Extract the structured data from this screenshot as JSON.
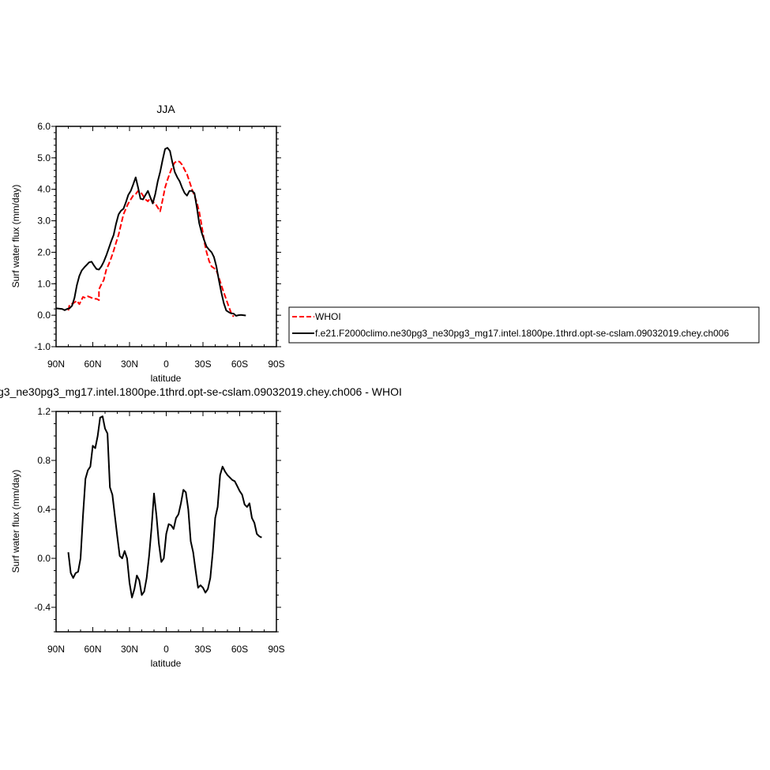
{
  "chart_data": [
    {
      "type": "line",
      "title": "JJA",
      "xlabel": "latitude",
      "ylabel": "Surf water flux (mm/day)",
      "xlim": [
        -90,
        90
      ],
      "ylim": [
        -1.0,
        6.0
      ],
      "x_direction": "90N on left, 90S on right (x = latitude in degrees north)",
      "xticks": [
        {
          "value": -90,
          "label": "90N"
        },
        {
          "value": -60,
          "label": "60N"
        },
        {
          "value": -30,
          "label": "30N"
        },
        {
          "value": 0,
          "label": "0"
        },
        {
          "value": 30,
          "label": "30S"
        },
        {
          "value": 60,
          "label": "60S"
        },
        {
          "value": 90,
          "label": "90S"
        }
      ],
      "yticks": [
        {
          "value": -1.0,
          "label": "-1.0"
        },
        {
          "value": 0.0,
          "label": "0.0"
        },
        {
          "value": 1.0,
          "label": "1.0"
        },
        {
          "value": 2.0,
          "label": "2.0"
        },
        {
          "value": 3.0,
          "label": "3.0"
        },
        {
          "value": 4.0,
          "label": "4.0"
        },
        {
          "value": 5.0,
          "label": "5.0"
        },
        {
          "value": 6.0,
          "label": "6.0"
        }
      ],
      "legend_position": "right of the top plot",
      "series": [
        {
          "name": "WHOI",
          "color": "#ff0000",
          "dash": "dashed",
          "points": [
            [
              -80,
              0.15
            ],
            [
              -79,
              0.33
            ],
            [
              -76,
              0.38
            ],
            [
              -73,
              0.46
            ],
            [
              -71,
              0.35
            ],
            [
              -68,
              0.58
            ],
            [
              -66,
              0.55
            ],
            [
              -64,
              0.6
            ],
            [
              -62,
              0.57
            ],
            [
              -59,
              0.52
            ],
            [
              -57,
              0.52
            ],
            [
              -55,
              0.48
            ],
            [
              -55,
              0.82
            ],
            [
              -53,
              0.98
            ],
            [
              -51,
              1.12
            ],
            [
              -49,
              1.45
            ],
            [
              -47,
              1.62
            ],
            [
              -45,
              1.82
            ],
            [
              -43,
              2.05
            ],
            [
              -41,
              2.3
            ],
            [
              -39,
              2.55
            ],
            [
              -37,
              2.88
            ],
            [
              -35,
              3.2
            ],
            [
              -33,
              3.38
            ],
            [
              -31,
              3.55
            ],
            [
              -29,
              3.68
            ],
            [
              -27,
              3.8
            ],
            [
              -25,
              3.85
            ],
            [
              -23,
              3.95
            ],
            [
              -21,
              3.92
            ],
            [
              -19,
              3.8
            ],
            [
              -17,
              3.68
            ],
            [
              -15,
              3.62
            ],
            [
              -13,
              3.72
            ],
            [
              -11,
              3.6
            ],
            [
              -9,
              3.55
            ],
            [
              -7,
              3.42
            ],
            [
              -5,
              3.3
            ],
            [
              -3,
              3.65
            ],
            [
              -1,
              4.05
            ],
            [
              1,
              4.3
            ],
            [
              3,
              4.52
            ],
            [
              5,
              4.72
            ],
            [
              7,
              4.85
            ],
            [
              9,
              4.9
            ],
            [
              11,
              4.87
            ],
            [
              13,
              4.78
            ],
            [
              15,
              4.62
            ],
            [
              17,
              4.48
            ],
            [
              19,
              4.25
            ],
            [
              21,
              4.0
            ],
            [
              23,
              3.8
            ],
            [
              25,
              3.58
            ],
            [
              27,
              3.28
            ],
            [
              29,
              2.85
            ],
            [
              31,
              2.35
            ],
            [
              33,
              2.0
            ],
            [
              35,
              1.72
            ],
            [
              37,
              1.55
            ],
            [
              39,
              1.5
            ],
            [
              41,
              1.42
            ],
            [
              43,
              1.2
            ],
            [
              45,
              0.95
            ],
            [
              47,
              0.72
            ],
            [
              49,
              0.5
            ],
            [
              51,
              0.28
            ],
            [
              53,
              0.08
            ],
            [
              55,
              -0.05
            ]
          ]
        },
        {
          "name": "f.e21.F2000climo.ne30pg3_ne30pg3_mg17.intel.1800pe.1thrd.opt-se-cslam.09032019.chey.ch006",
          "color": "#000000",
          "dash": "solid",
          "points": [
            [
              -90,
              0.22
            ],
            [
              -85,
              0.2
            ],
            [
              -83,
              0.16
            ],
            [
              -81,
              0.2
            ],
            [
              -79,
              0.22
            ],
            [
              -77,
              0.3
            ],
            [
              -75,
              0.55
            ],
            [
              -73,
              0.95
            ],
            [
              -71,
              1.25
            ],
            [
              -69,
              1.42
            ],
            [
              -67,
              1.52
            ],
            [
              -65,
              1.6
            ],
            [
              -63,
              1.68
            ],
            [
              -61,
              1.7
            ],
            [
              -59,
              1.58
            ],
            [
              -57,
              1.47
            ],
            [
              -55,
              1.45
            ],
            [
              -53,
              1.55
            ],
            [
              -51,
              1.7
            ],
            [
              -49,
              1.9
            ],
            [
              -47,
              2.12
            ],
            [
              -45,
              2.35
            ],
            [
              -43,
              2.55
            ],
            [
              -41,
              2.9
            ],
            [
              -39,
              3.2
            ],
            [
              -37,
              3.32
            ],
            [
              -35,
              3.38
            ],
            [
              -33,
              3.58
            ],
            [
              -31,
              3.82
            ],
            [
              -29,
              3.95
            ],
            [
              -27,
              4.15
            ],
            [
              -25,
              4.38
            ],
            [
              -23,
              4.05
            ],
            [
              -21,
              3.7
            ],
            [
              -19,
              3.68
            ],
            [
              -17,
              3.82
            ],
            [
              -15,
              3.95
            ],
            [
              -13,
              3.75
            ],
            [
              -11,
              3.55
            ],
            [
              -9,
              3.85
            ],
            [
              -7,
              4.25
            ],
            [
              -5,
              4.55
            ],
            [
              -3,
              4.92
            ],
            [
              -1,
              5.28
            ],
            [
              1,
              5.32
            ],
            [
              3,
              5.22
            ],
            [
              5,
              4.85
            ],
            [
              7,
              4.55
            ],
            [
              9,
              4.38
            ],
            [
              11,
              4.25
            ],
            [
              13,
              4.05
            ],
            [
              15,
              3.88
            ],
            [
              17,
              3.8
            ],
            [
              19,
              3.95
            ],
            [
              21,
              3.95
            ],
            [
              23,
              3.88
            ],
            [
              25,
              3.42
            ],
            [
              27,
              2.92
            ],
            [
              29,
              2.62
            ],
            [
              31,
              2.38
            ],
            [
              33,
              2.18
            ],
            [
              35,
              2.08
            ],
            [
              37,
              2.0
            ],
            [
              39,
              1.85
            ],
            [
              41,
              1.55
            ],
            [
              43,
              1.12
            ],
            [
              45,
              0.72
            ],
            [
              47,
              0.38
            ],
            [
              49,
              0.15
            ],
            [
              51,
              0.1
            ],
            [
              53,
              0.06
            ],
            [
              55,
              0.05
            ],
            [
              57,
              -0.02
            ],
            [
              59,
              0.0
            ],
            [
              61,
              0.01
            ],
            [
              63,
              0.0
            ],
            [
              65,
              -0.01
            ]
          ]
        }
      ]
    },
    {
      "type": "line",
      "title": "g3_ne30pg3_mg17.intel.1800pe.1thrd.opt-se-cslam.09032019.chey.ch006 - WHOI",
      "xlabel": "latitude",
      "ylabel": "Surf water flux (mm/day)",
      "xlim": [
        -90,
        90
      ],
      "ylim": [
        -0.6,
        1.2
      ],
      "x_direction": "90N on left, 90S on right (x = latitude in degrees north)",
      "xticks": [
        {
          "value": -90,
          "label": "90N"
        },
        {
          "value": -60,
          "label": "60N"
        },
        {
          "value": -30,
          "label": "30N"
        },
        {
          "value": 0,
          "label": "0"
        },
        {
          "value": 30,
          "label": "30S"
        },
        {
          "value": 60,
          "label": "60S"
        },
        {
          "value": 90,
          "label": "90S"
        }
      ],
      "yticks": [
        {
          "value": -0.4,
          "label": "-0.4"
        },
        {
          "value": 0.0,
          "label": "0.0"
        },
        {
          "value": 0.4,
          "label": "0.4"
        },
        {
          "value": 0.8,
          "label": "0.8"
        },
        {
          "value": 1.2,
          "label": "1.2"
        }
      ],
      "series": [
        {
          "color": "#000000",
          "dash": "solid",
          "points": [
            [
              -80,
              0.05
            ],
            [
              -78,
              -0.12
            ],
            [
              -76,
              -0.16
            ],
            [
              -74,
              -0.12
            ],
            [
              -72,
              -0.11
            ],
            [
              -70,
              0.0
            ],
            [
              -68,
              0.35
            ],
            [
              -66,
              0.65
            ],
            [
              -64,
              0.72
            ],
            [
              -62,
              0.75
            ],
            [
              -60,
              0.92
            ],
            [
              -58,
              0.9
            ],
            [
              -56,
              1.0
            ],
            [
              -54,
              1.15
            ],
            [
              -52,
              1.16
            ],
            [
              -50,
              1.06
            ],
            [
              -48,
              1.02
            ],
            [
              -46,
              0.58
            ],
            [
              -44,
              0.52
            ],
            [
              -42,
              0.35
            ],
            [
              -40,
              0.18
            ],
            [
              -38,
              0.02
            ],
            [
              -36,
              0.0
            ],
            [
              -34,
              0.06
            ],
            [
              -32,
              0.0
            ],
            [
              -30,
              -0.2
            ],
            [
              -28,
              -0.32
            ],
            [
              -26,
              -0.25
            ],
            [
              -24,
              -0.14
            ],
            [
              -22,
              -0.18
            ],
            [
              -20,
              -0.3
            ],
            [
              -18,
              -0.27
            ],
            [
              -16,
              -0.16
            ],
            [
              -14,
              0.02
            ],
            [
              -12,
              0.25
            ],
            [
              -10,
              0.53
            ],
            [
              -8,
              0.35
            ],
            [
              -6,
              0.12
            ],
            [
              -4,
              -0.03
            ],
            [
              -2,
              0.0
            ],
            [
              0,
              0.2
            ],
            [
              2,
              0.28
            ],
            [
              4,
              0.27
            ],
            [
              6,
              0.24
            ],
            [
              8,
              0.33
            ],
            [
              10,
              0.36
            ],
            [
              12,
              0.45
            ],
            [
              14,
              0.56
            ],
            [
              16,
              0.54
            ],
            [
              18,
              0.4
            ],
            [
              20,
              0.14
            ],
            [
              22,
              0.05
            ],
            [
              24,
              -0.1
            ],
            [
              26,
              -0.24
            ],
            [
              28,
              -0.22
            ],
            [
              30,
              -0.24
            ],
            [
              32,
              -0.28
            ],
            [
              34,
              -0.25
            ],
            [
              36,
              -0.16
            ],
            [
              38,
              0.05
            ],
            [
              40,
              0.33
            ],
            [
              42,
              0.42
            ],
            [
              44,
              0.68
            ],
            [
              46,
              0.75
            ],
            [
              48,
              0.71
            ],
            [
              50,
              0.68
            ],
            [
              52,
              0.66
            ],
            [
              54,
              0.64
            ],
            [
              56,
              0.63
            ],
            [
              58,
              0.59
            ],
            [
              60,
              0.55
            ],
            [
              62,
              0.52
            ],
            [
              64,
              0.44
            ],
            [
              66,
              0.42
            ],
            [
              68,
              0.45
            ],
            [
              70,
              0.33
            ],
            [
              72,
              0.29
            ],
            [
              74,
              0.2
            ],
            [
              76,
              0.18
            ],
            [
              78,
              0.17
            ]
          ]
        }
      ]
    }
  ]
}
